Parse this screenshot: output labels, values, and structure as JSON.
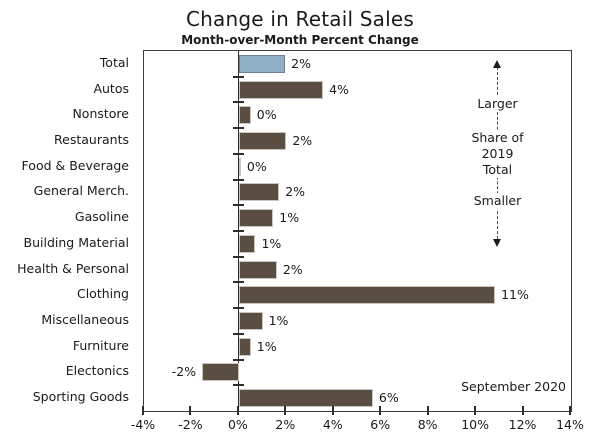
{
  "title": "Change in Retail Sales",
  "subtitle": "Month-over-Month Percent Change",
  "annotation": {
    "larger": "Larger",
    "share_line1": "Share of",
    "share_line2": "2019",
    "share_line3": "Total",
    "smaller": "Smaller",
    "date_label": "September 2020"
  },
  "colors": {
    "bar_fill": "#5a4d42",
    "bar_border": "#cdc5bd",
    "highlight_fill": "#91afc5",
    "highlight_border": "#708090",
    "axis": "#2e2e2e",
    "text": "#1b1b1b"
  },
  "chart_data": {
    "type": "bar",
    "orientation": "horizontal",
    "title": "Change in Retail Sales",
    "subtitle": "Month-over-Month Percent Change",
    "grid": false,
    "legend": "none",
    "x_axis": {
      "min": -4,
      "max": 14,
      "step": 2,
      "tick_labels": [
        "-4%",
        "-2%",
        "0%",
        "2%",
        "4%",
        "6%",
        "8%",
        "10%",
        "12%",
        "14%"
      ]
    },
    "rows": [
      {
        "category": "Total",
        "value": 2,
        "label": "2%",
        "bar_extent": 1.95,
        "highlight": true
      },
      {
        "category": "Autos",
        "value": 4,
        "label": "4%",
        "bar_extent": 3.55
      },
      {
        "category": "Nonstore",
        "value": 0,
        "label": "0%",
        "bar_extent": 0.5
      },
      {
        "category": "Restaurants",
        "value": 2,
        "label": "2%",
        "bar_extent": 2.0
      },
      {
        "category": "Food & Beverage",
        "value": 0,
        "label": "0%",
        "bar_extent": 0.07
      },
      {
        "category": "General Merch.",
        "value": 2,
        "label": "2%",
        "bar_extent": 1.7
      },
      {
        "category": "Gasoline",
        "value": 1,
        "label": "1%",
        "bar_extent": 1.45
      },
      {
        "category": "Building Material",
        "value": 1,
        "label": "1%",
        "bar_extent": 0.7
      },
      {
        "category": "Health & Personal",
        "value": 2,
        "label": "2%",
        "bar_extent": 1.6
      },
      {
        "category": "Clothing",
        "value": 11,
        "label": "11%",
        "bar_extent": 10.8
      },
      {
        "category": "Miscellaneous",
        "value": 1,
        "label": "1%",
        "bar_extent": 1.0
      },
      {
        "category": "Furniture",
        "value": 1,
        "label": "1%",
        "bar_extent": 0.5
      },
      {
        "category": "Electonics",
        "value": -2,
        "label": "-2%",
        "bar_extent": -1.55
      },
      {
        "category": "Sporting Goods",
        "value": 6,
        "label": "6%",
        "bar_extent": 5.65
      }
    ],
    "annotations": [
      "Larger",
      "Share of 2019 Total",
      "Smaller",
      "September 2020"
    ]
  }
}
